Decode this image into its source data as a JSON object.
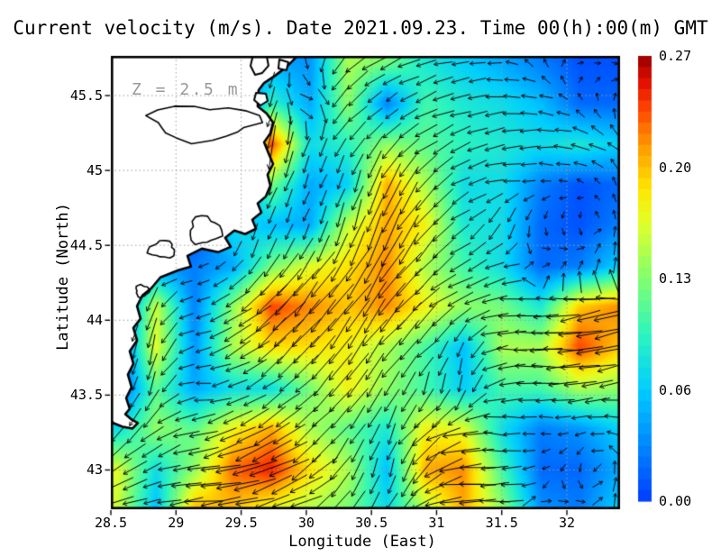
{
  "title": "Current velocity (m/s). Date 2021.09.23. Time 00(h):00(m) GMT",
  "annotation": {
    "text": "Z = 2.5 m"
  },
  "axes": {
    "x": {
      "label": "Longitude (East)",
      "tick_labels": [
        "28.5",
        "29",
        "29.5",
        "30",
        "30.5",
        "31",
        "31.5",
        "32"
      ],
      "tick_values": [
        28.5,
        29,
        29.5,
        30,
        30.5,
        31,
        31.5,
        32
      ],
      "range": [
        28.5,
        32.408
      ]
    },
    "y": {
      "label": "Latitude (North)",
      "tick_labels": [
        "43",
        "43.5",
        "44",
        "44.5",
        "45",
        "45.5"
      ],
      "tick_values": [
        43,
        43.5,
        44,
        44.5,
        45,
        45.5
      ],
      "range": [
        42.738,
        45.765
      ]
    }
  },
  "colorbar": {
    "min": 0.0,
    "max": 0.27,
    "tick_labels": [
      "0.27",
      "0.20",
      "0.13",
      "0.06",
      "0.00"
    ],
    "steps": 40
  },
  "chart_data": {
    "type": "heatmap_quiver_map",
    "title": "Current velocity (m/s). Date 2021.09.23. Time 00(h):00(m) GMT",
    "date": "2021.09.23",
    "time": "00(h):00(m) GMT",
    "depth": "2.5 m",
    "units": "m/s",
    "xlabel": "Longitude (East)",
    "ylabel": "Latitude (North)",
    "xlim": [
      28.5,
      32.408
    ],
    "ylim": [
      42.738,
      45.765
    ],
    "grid": "dotted 0.5 degree",
    "colorbar_range": [
      0.0,
      0.27
    ],
    "lon": [
      28.55,
      28.85,
      29.14,
      29.44,
      29.73,
      30.03,
      30.32,
      30.62,
      30.91,
      31.21,
      31.5,
      31.8,
      32.09,
      32.39
    ],
    "lat": [
      45.72,
      45.45,
      45.18,
      44.9,
      44.63,
      44.36,
      44.09,
      43.82,
      43.54,
      43.27,
      43.0,
      42.73
    ],
    "speed_ms": [
      [
        0.0,
        0.0,
        0.0,
        0.0,
        0.05,
        0.04,
        0.15,
        0.13,
        0.09,
        0.07,
        0.05,
        0.03,
        0.01,
        0.01
      ],
      [
        0.0,
        0.0,
        0.0,
        0.0,
        0.1,
        0.05,
        0.14,
        0.03,
        0.11,
        0.09,
        0.08,
        0.06,
        0.02,
        0.02
      ],
      [
        0.0,
        0.0,
        0.0,
        0.0,
        0.24,
        0.08,
        0.1,
        0.14,
        0.12,
        0.1,
        0.09,
        0.08,
        0.09,
        0.07
      ],
      [
        0.0,
        0.0,
        0.0,
        0.0,
        0.13,
        0.05,
        0.07,
        0.21,
        0.15,
        0.08,
        0.08,
        0.03,
        0.01,
        0.02
      ],
      [
        0.0,
        0.0,
        0.0,
        0.08,
        0.06,
        0.05,
        0.16,
        0.21,
        0.18,
        0.09,
        0.08,
        0.02,
        0.01,
        0.03
      ],
      [
        0.0,
        0.04,
        0.03,
        0.05,
        0.13,
        0.17,
        0.19,
        0.22,
        0.15,
        0.11,
        0.08,
        0.02,
        0.03,
        0.07
      ],
      [
        0.0,
        0.16,
        0.03,
        0.14,
        0.24,
        0.22,
        0.2,
        0.22,
        0.18,
        0.14,
        0.13,
        0.09,
        0.2,
        0.22
      ],
      [
        0.0,
        0.17,
        0.04,
        0.15,
        0.19,
        0.19,
        0.18,
        0.15,
        0.11,
        0.06,
        0.15,
        0.15,
        0.24,
        0.2
      ],
      [
        0.0,
        0.12,
        0.05,
        0.08,
        0.08,
        0.13,
        0.18,
        0.14,
        0.11,
        0.07,
        0.11,
        0.11,
        0.15,
        0.14
      ],
      [
        0.08,
        0.14,
        0.12,
        0.18,
        0.21,
        0.15,
        0.12,
        0.09,
        0.18,
        0.17,
        0.08,
        0.03,
        0.04,
        0.07
      ],
      [
        0.17,
        0.08,
        0.14,
        0.23,
        0.25,
        0.19,
        0.15,
        0.06,
        0.21,
        0.22,
        0.11,
        0.02,
        0.02,
        0.05
      ],
      [
        0.16,
        0.06,
        0.21,
        0.2,
        0.17,
        0.15,
        0.13,
        0.08,
        0.15,
        0.21,
        0.14,
        0.04,
        0.03,
        0.07
      ]
    ],
    "direction_deg_ccw_from_east": [
      [
        250,
        250,
        250,
        250,
        250,
        280,
        215,
        205,
        195,
        185,
        180,
        130,
        20,
        340
      ],
      [
        255,
        255,
        255,
        255,
        255,
        345,
        225,
        215,
        205,
        195,
        185,
        175,
        140,
        80
      ],
      [
        255,
        255,
        255,
        255,
        255,
        245,
        235,
        230,
        215,
        200,
        190,
        180,
        170,
        140
      ],
      [
        250,
        250,
        250,
        250,
        252,
        248,
        252,
        245,
        225,
        205,
        190,
        180,
        155,
        110
      ],
      [
        255,
        255,
        255,
        255,
        250,
        246,
        250,
        246,
        232,
        215,
        250,
        265,
        280,
        90
      ],
      [
        230,
        185,
        195,
        230,
        240,
        235,
        240,
        238,
        228,
        210,
        200,
        30,
        60,
        80
      ],
      [
        250,
        250,
        190,
        215,
        225,
        230,
        235,
        232,
        222,
        205,
        185,
        180,
        190,
        195
      ],
      [
        255,
        255,
        185,
        210,
        220,
        228,
        232,
        230,
        225,
        250,
        182,
        180,
        188,
        192
      ],
      [
        250,
        250,
        180,
        200,
        215,
        225,
        230,
        235,
        255,
        260,
        185,
        178,
        185,
        190
      ],
      [
        235,
        215,
        195,
        205,
        215,
        222,
        235,
        250,
        215,
        190,
        175,
        180,
        185,
        170
      ],
      [
        215,
        200,
        190,
        195,
        205,
        215,
        235,
        255,
        230,
        185,
        180,
        200,
        270,
        90
      ],
      [
        195,
        190,
        185,
        190,
        195,
        205,
        230,
        245,
        200,
        182,
        178,
        10,
        0,
        80
      ]
    ],
    "colormap_stops": [
      [
        0.0,
        [
          0,
          60,
          255
        ]
      ],
      [
        0.125,
        [
          0,
          135,
          255
        ]
      ],
      [
        0.25,
        [
          0,
          205,
          255
        ]
      ],
      [
        0.375,
        [
          45,
          245,
          190
        ]
      ],
      [
        0.5,
        [
          130,
          255,
          110
        ]
      ],
      [
        0.625,
        [
          225,
          255,
          40
        ]
      ],
      [
        0.7,
        [
          255,
          230,
          0
        ]
      ],
      [
        0.79,
        [
          255,
          160,
          0
        ]
      ],
      [
        0.88,
        [
          255,
          70,
          0
        ]
      ],
      [
        0.94,
        [
          228,
          15,
          0
        ]
      ],
      [
        1.0,
        [
          150,
          0,
          0
        ]
      ]
    ]
  },
  "map": {
    "coastline": [
      [
        29.932,
        45.764
      ],
      [
        29.849,
        45.692
      ],
      [
        29.759,
        45.632
      ],
      [
        29.676,
        45.584
      ],
      [
        29.634,
        45.536
      ],
      [
        29.627,
        45.428
      ],
      [
        29.696,
        45.38
      ],
      [
        29.745,
        45.32
      ],
      [
        29.724,
        45.248
      ],
      [
        29.676,
        45.188
      ],
      [
        29.71,
        45.115
      ],
      [
        29.745,
        45.043
      ],
      [
        29.703,
        44.971
      ],
      [
        29.724,
        44.899
      ],
      [
        29.69,
        44.827
      ],
      [
        29.627,
        44.779
      ],
      [
        29.655,
        44.719
      ],
      [
        29.586,
        44.671
      ],
      [
        29.614,
        44.611
      ],
      [
        29.531,
        44.575
      ],
      [
        29.448,
        44.599
      ],
      [
        29.378,
        44.551
      ],
      [
        29.42,
        44.49
      ],
      [
        29.323,
        44.454
      ],
      [
        29.198,
        44.478
      ],
      [
        29.088,
        44.43
      ],
      [
        29.115,
        44.358
      ],
      [
        29.019,
        44.334
      ],
      [
        28.88,
        44.286
      ],
      [
        28.811,
        44.214
      ],
      [
        28.742,
        44.166
      ],
      [
        28.701,
        44.094
      ],
      [
        28.728,
        44.01
      ],
      [
        28.673,
        43.949
      ],
      [
        28.701,
        43.865
      ],
      [
        28.645,
        43.793
      ],
      [
        28.673,
        43.709
      ],
      [
        28.631,
        43.637
      ],
      [
        28.659,
        43.553
      ],
      [
        28.618,
        43.481
      ],
      [
        28.645,
        43.409
      ],
      [
        28.611,
        43.373
      ],
      [
        28.659,
        43.337
      ],
      [
        28.707,
        43.313
      ],
      [
        28.666,
        43.277
      ],
      [
        28.59,
        43.289
      ],
      [
        28.521,
        43.313
      ],
      [
        28.493,
        43.337
      ]
    ],
    "islands": [
      [
        [
          29.593,
          45.777
        ],
        [
          29.696,
          45.765
        ],
        [
          29.71,
          45.699
        ],
        [
          29.662,
          45.651
        ],
        [
          29.607,
          45.639
        ],
        [
          29.572,
          45.699
        ]
      ],
      [
        [
          29.793,
          45.741
        ],
        [
          29.862,
          45.723
        ],
        [
          29.848,
          45.669
        ],
        [
          29.786,
          45.681
        ]
      ],
      [
        [
          29.614,
          45.518
        ],
        [
          29.69,
          45.512
        ],
        [
          29.703,
          45.464
        ],
        [
          29.648,
          45.434
        ],
        [
          29.6,
          45.47
        ]
      ]
    ],
    "lakes": [
      {
        "c": [
          29.206,
          45.32
        ],
        "rx": 0.4,
        "ry": 0.115,
        "ph": 0.5
      },
      {
        "c": [
          29.22,
          44.6
        ],
        "rx": 0.12,
        "ry": 0.09,
        "ph": 2.1
      },
      {
        "c": [
          28.894,
          44.472
        ],
        "rx": 0.1,
        "ry": 0.055,
        "ph": 4.0
      },
      {
        "c": [
          28.74,
          44.196
        ],
        "rx": 0.05,
        "ry": 0.04,
        "ph": 1.2
      }
    ]
  }
}
